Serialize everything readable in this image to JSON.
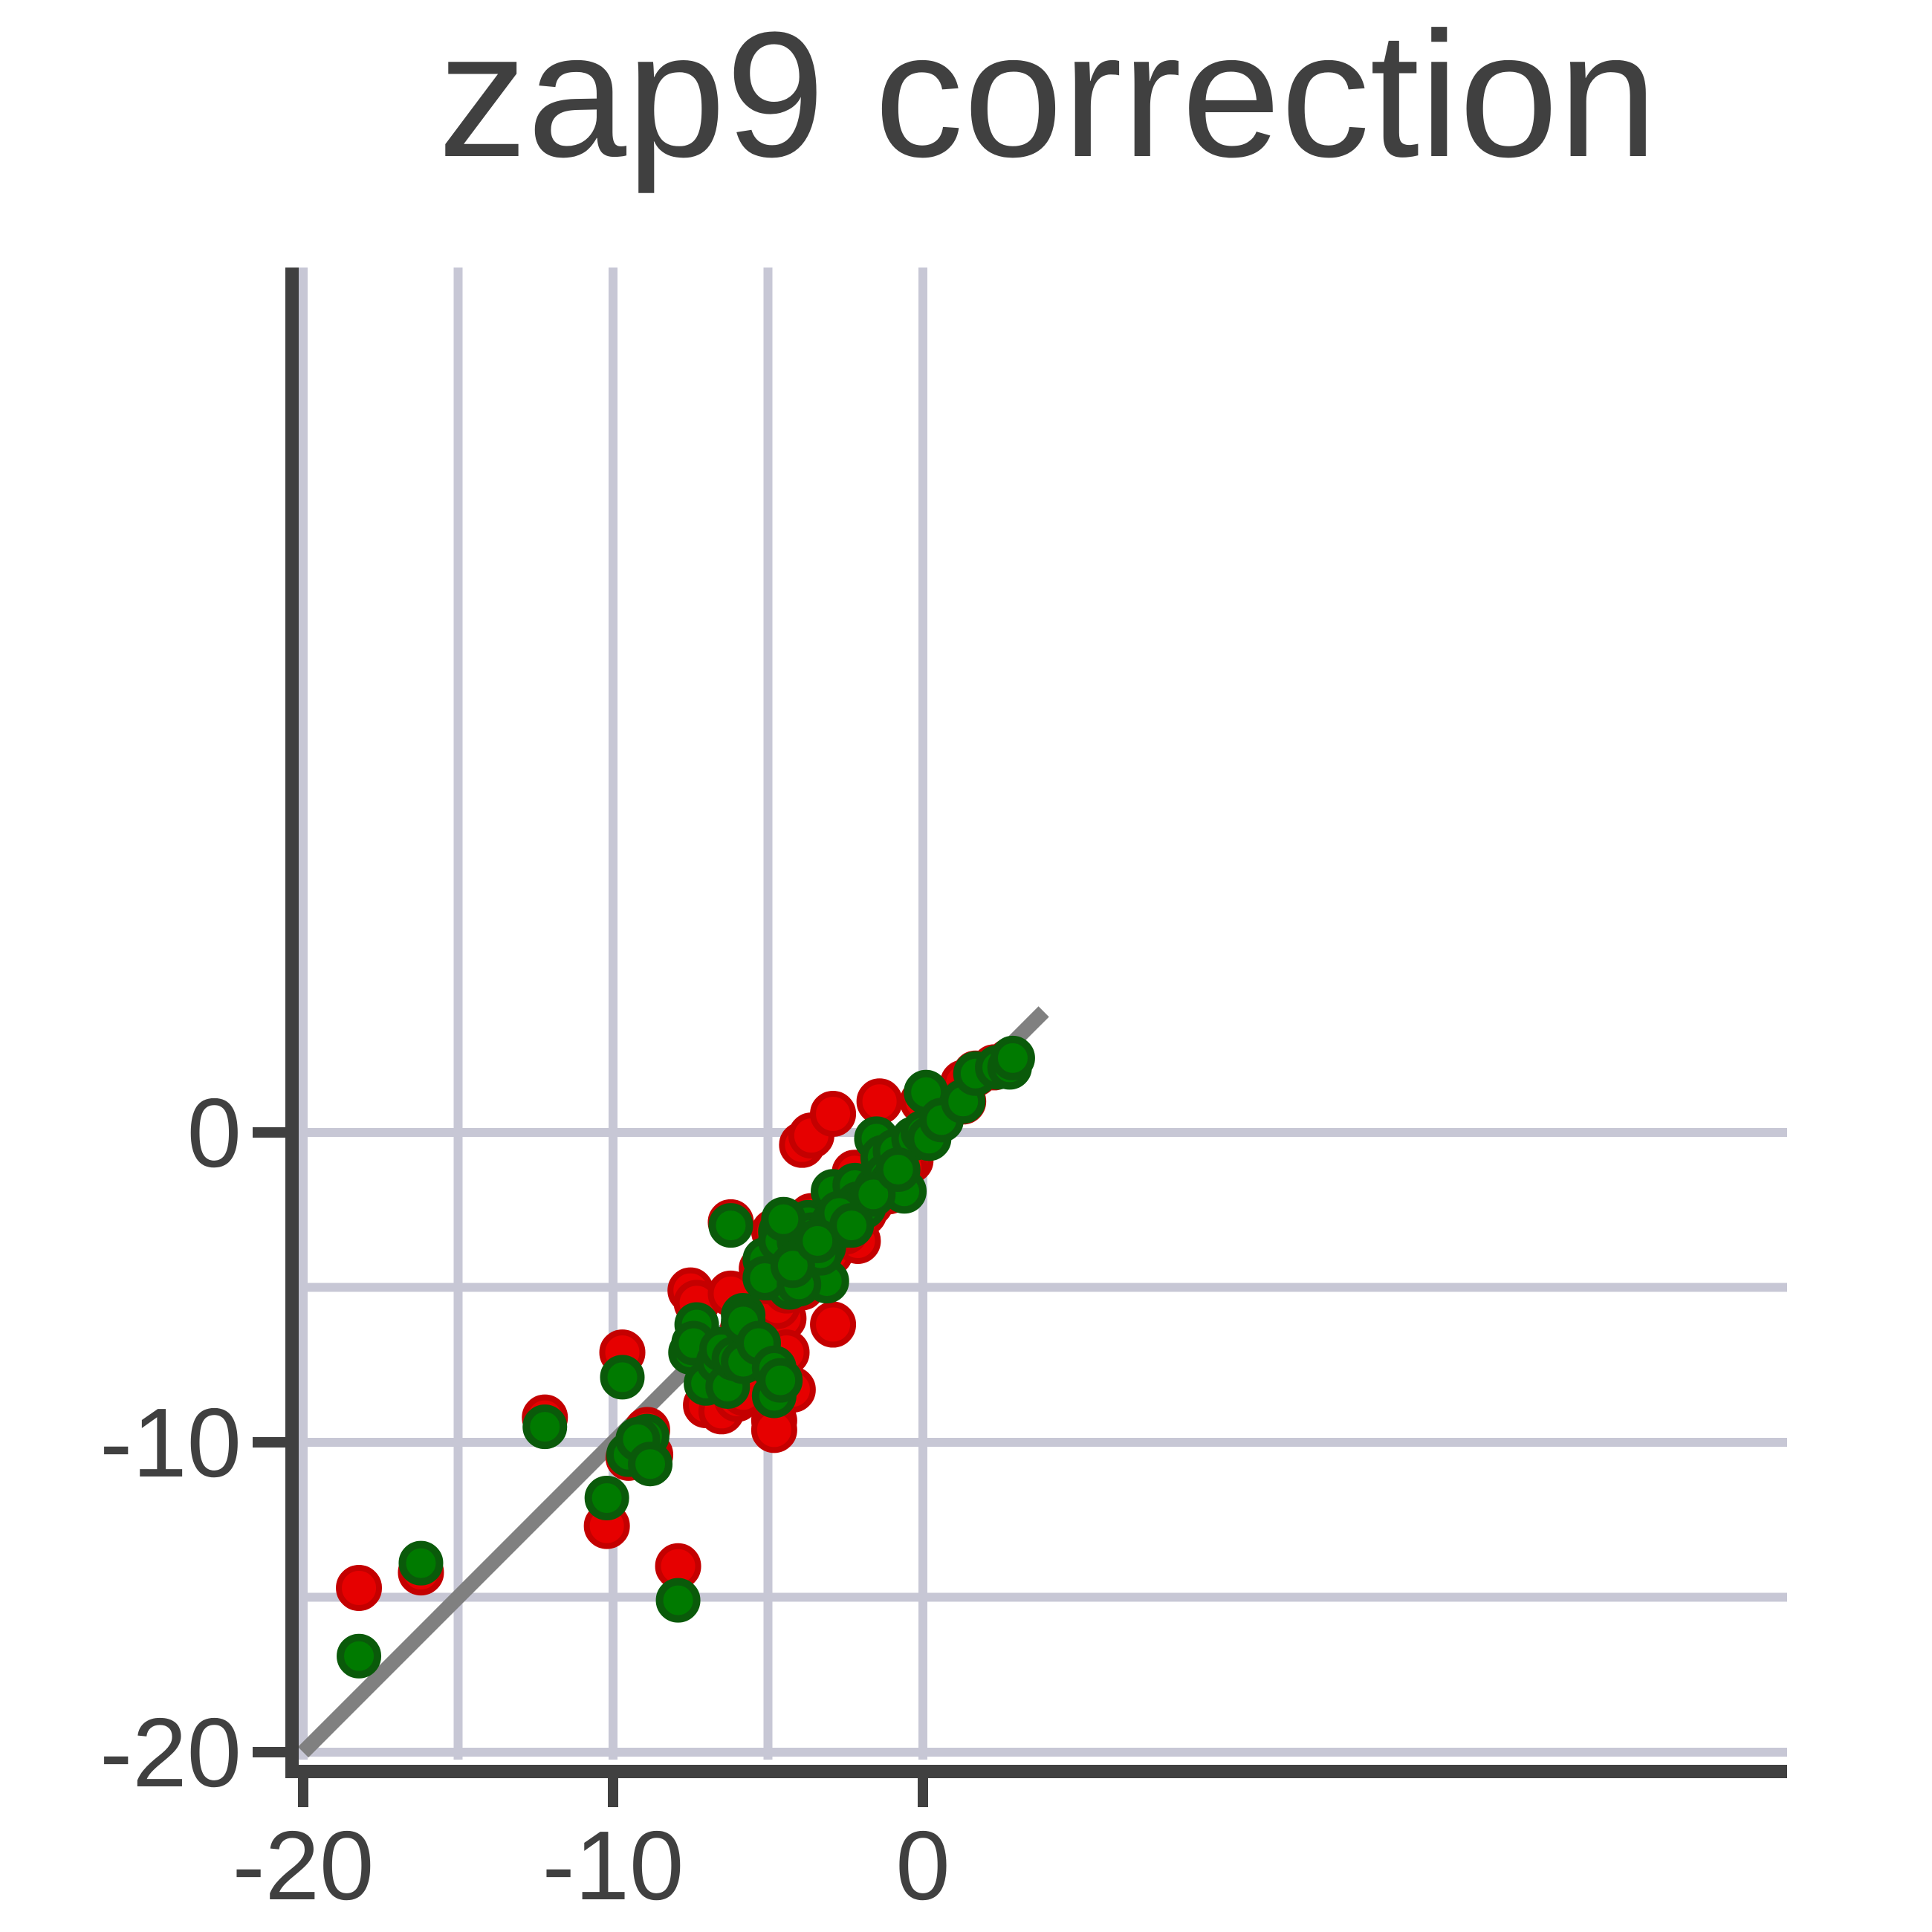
{
  "chart_data": {
    "type": "scatter",
    "title": "zap9 correction",
    "xlabel": "",
    "ylabel": "",
    "xlim": [
      -20,
      4
    ],
    "ylim": [
      -20,
      4
    ],
    "xticks": [
      -20,
      -10,
      0
    ],
    "yticks": [
      -20,
      -10,
      0
    ],
    "grid": true,
    "grid_step": 5,
    "diagonal_reference_line": true,
    "colors": {
      "red_series": "#e60000",
      "green_series": "#007a00",
      "green_edge": "#0a5a0a",
      "diagonal": "#808080",
      "grid": "#c7c7d5",
      "axis": "#404040",
      "text": "#404040"
    },
    "series": [
      {
        "color": "red",
        "points": [
          [
            -16.2,
            -14.2
          ],
          [
            -18.2,
            -14.7
          ],
          [
            -12.2,
            -9.2
          ],
          [
            -10.2,
            -12.7
          ],
          [
            -9.7,
            -7.1
          ],
          [
            -8.9,
            -9.6
          ],
          [
            -9.5,
            -10.5
          ],
          [
            -8.8,
            -10.4
          ],
          [
            -7.9,
            -14.0
          ],
          [
            -7.5,
            -5.1
          ],
          [
            -7.3,
            -5.5
          ],
          [
            -7.0,
            -8.8
          ],
          [
            -6.5,
            -9.0
          ],
          [
            -6.6,
            -8.0
          ],
          [
            -6.0,
            -8.6
          ],
          [
            -5.8,
            -8.4
          ],
          [
            -5.8,
            -6.3
          ],
          [
            -5.3,
            -7.3
          ],
          [
            -6.2,
            -5.2
          ],
          [
            -6.2,
            -2.9
          ],
          [
            -5.2,
            -4.4
          ],
          [
            -5.0,
            -6.5
          ],
          [
            -4.8,
            -3.2
          ],
          [
            -4.5,
            -6.0
          ],
          [
            -4.4,
            -7.1
          ],
          [
            -3.9,
            -5.0
          ],
          [
            -4.2,
            -8.3
          ],
          [
            -4.8,
            -9.3
          ],
          [
            -4.8,
            -9.6
          ],
          [
            -3.9,
            -0.4
          ],
          [
            -3.6,
            -0.1
          ],
          [
            -3.6,
            -2.7
          ],
          [
            -3.0,
            -3.9
          ],
          [
            -3.3,
            -3.3
          ],
          [
            -2.9,
            0.6
          ],
          [
            -2.9,
            -6.2
          ],
          [
            -2.4,
            -2.5
          ],
          [
            -2.2,
            -1.3
          ],
          [
            -2.1,
            -3.5
          ],
          [
            -1.7,
            -2.3
          ],
          [
            -1.5,
            -1.8
          ],
          [
            -1.4,
            1.0
          ],
          [
            -1.1,
            -1.9
          ],
          [
            -0.8,
            -0.6
          ],
          [
            -0.4,
            -0.9
          ],
          [
            -0.2,
            -0.2
          ],
          [
            0.0,
            1.0
          ],
          [
            0.2,
            0.0
          ],
          [
            0.5,
            0.8
          ],
          [
            1.3,
            1.6
          ],
          [
            1.3,
            1.0
          ],
          [
            1.7,
            1.9
          ],
          [
            2.3,
            2.1
          ],
          [
            2.8,
            2.3
          ],
          [
            -4.7,
            -5.6
          ],
          [
            -3.4,
            -4.3
          ],
          [
            -2.5,
            -3.2
          ],
          [
            -1.9,
            -2.6
          ],
          [
            -3.0,
            -3.5
          ],
          [
            -4.4,
            -5.1
          ],
          [
            -5.0,
            -4.8
          ],
          [
            -1.2,
            -1.6
          ],
          [
            -0.6,
            -1.1
          ],
          [
            -4.0,
            -3.4
          ]
        ]
      },
      {
        "color": "green",
        "points": [
          [
            -16.2,
            -13.9
          ],
          [
            -18.2,
            -16.9
          ],
          [
            -12.2,
            -9.5
          ],
          [
            -10.2,
            -11.8
          ],
          [
            -9.7,
            -7.9
          ],
          [
            -8.9,
            -9.8
          ],
          [
            -9.5,
            -10.4
          ],
          [
            -9.2,
            -9.9
          ],
          [
            -8.8,
            -10.7
          ],
          [
            -7.9,
            -15.1
          ],
          [
            -7.3,
            -6.2
          ],
          [
            -7.5,
            -7.1
          ],
          [
            -7.4,
            -6.8
          ],
          [
            -7.0,
            -8.1
          ],
          [
            -6.6,
            -7.4
          ],
          [
            -6.5,
            -7.0
          ],
          [
            -6.3,
            -8.2
          ],
          [
            -6.1,
            -7.3
          ],
          [
            -5.8,
            -7.4
          ],
          [
            -5.8,
            -5.9
          ],
          [
            -5.8,
            -6.1
          ],
          [
            -5.3,
            -6.8
          ],
          [
            -4.8,
            -8.5
          ],
          [
            -4.8,
            -7.6
          ],
          [
            -4.6,
            -8.0
          ],
          [
            -6.2,
            -3.0
          ],
          [
            -5.1,
            -4.1
          ],
          [
            -5.0,
            -4.7
          ],
          [
            -4.4,
            -4.4
          ],
          [
            -4.6,
            -3.2
          ],
          [
            -4.6,
            -3.5
          ],
          [
            -4.2,
            -3.0
          ],
          [
            -4.0,
            -3.5
          ],
          [
            -3.9,
            -3.2
          ],
          [
            -3.7,
            -2.9
          ],
          [
            -3.6,
            -3.3
          ],
          [
            -3.2,
            -3.7
          ],
          [
            -3.0,
            -3.1
          ],
          [
            -2.9,
            -2.9
          ],
          [
            -2.9,
            -1.9
          ],
          [
            -2.6,
            -2.6
          ],
          [
            -2.4,
            -2.7
          ],
          [
            -2.2,
            -1.7
          ],
          [
            -2.1,
            -2.3
          ],
          [
            -1.9,
            -2.4
          ],
          [
            -1.5,
            -1.8
          ],
          [
            -1.5,
            -0.2
          ],
          [
            -1.3,
            -0.8
          ],
          [
            -1.2,
            -1.4
          ],
          [
            -1.0,
            -1.6
          ],
          [
            -0.9,
            -0.6
          ],
          [
            -0.6,
            -1.9
          ],
          [
            -0.3,
            -0.2
          ],
          [
            0.0,
            0.0
          ],
          [
            0.1,
            1.3
          ],
          [
            0.2,
            -0.2
          ],
          [
            0.6,
            0.4
          ],
          [
            1.3,
            1.0
          ],
          [
            1.7,
            1.9
          ],
          [
            2.4,
            2.1
          ],
          [
            2.8,
            2.1
          ],
          [
            2.9,
            2.4
          ],
          [
            -2.5,
            -3.0
          ],
          [
            -3.1,
            -4.8
          ],
          [
            -4.1,
            -4.2
          ],
          [
            -4.3,
            -5.0
          ],
          [
            -3.3,
            -3.9
          ],
          [
            -4.5,
            -2.8
          ],
          [
            -5.1,
            -4.7
          ],
          [
            -4.0,
            -4.9
          ],
          [
            -4.2,
            -4.3
          ],
          [
            -2.7,
            -2.6
          ],
          [
            -1.6,
            -2.0
          ],
          [
            -0.8,
            -1.2
          ],
          [
            -3.4,
            -3.5
          ],
          [
            -2.3,
            -3.0
          ]
        ]
      }
    ]
  }
}
